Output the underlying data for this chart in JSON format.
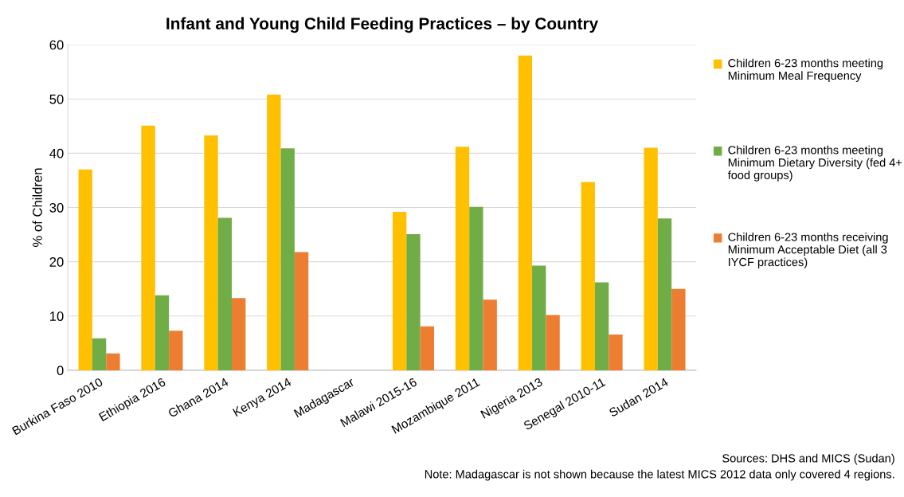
{
  "chart_data": {
    "type": "bar",
    "title": "Infant and Young Child Feeding Practices – by Country",
    "ylabel": "% of Children",
    "categories": [
      "Burkina Faso 2010",
      "Ethiopia 2016",
      "Ghana 2014",
      "Kenya 2014",
      "Madagascar",
      "Malawi 2015-16",
      "Mozambique 2011",
      "Nigeria 2013",
      "Senegal 2010-11",
      "Sudan 2014"
    ],
    "series": [
      {
        "name": "Children 6-23 months meeting Minimum Meal Frequency",
        "color": "#ffc000",
        "values": [
          37.0,
          45.1,
          43.3,
          50.8,
          null,
          29.2,
          41.2,
          58.0,
          34.7,
          41.0
        ]
      },
      {
        "name": "Children 6-23 months meeting Minimum Dietary Diversity (fed 4+ food groups)",
        "color": "#70ad47",
        "values": [
          5.9,
          13.8,
          28.1,
          40.9,
          null,
          25.1,
          30.1,
          19.3,
          16.2,
          28.0
        ]
      },
      {
        "name": "Children 6-23 months receiving Minimum Acceptable Diet (all 3 IYCF practices)",
        "color": "#ed7d31",
        "values": [
          3.1,
          7.3,
          13.3,
          21.8,
          null,
          8.1,
          13.0,
          10.2,
          6.6,
          15.0
        ]
      }
    ],
    "ylim": [
      0,
      60
    ],
    "yticks": [
      0,
      10,
      20,
      30,
      40,
      50,
      60
    ],
    "grid": "y",
    "legend": "right",
    "annotations": [
      "Sources: DHS and MICS (Sudan)",
      "Note: Madagascar is not shown because the latest MICS 2012 data only covered 4 regions."
    ]
  }
}
